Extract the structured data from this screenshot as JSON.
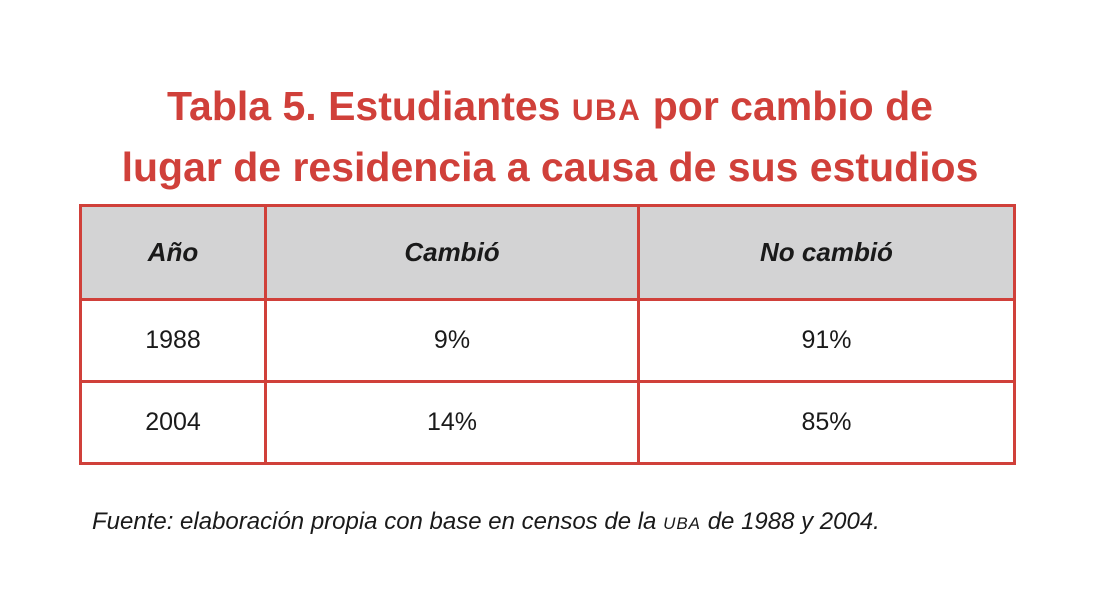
{
  "title": {
    "line1_before": "Tabla 5. Estudiantes ",
    "line1_abbr": "UBA",
    "line1_after": " por cambio de",
    "line2": "lugar de residencia a causa de sus estudios"
  },
  "table": {
    "headers": [
      "Año",
      "Cambió",
      "No cambió"
    ],
    "rows": [
      [
        "1988",
        "9%",
        "91%"
      ],
      [
        "2004",
        "14%",
        "85%"
      ]
    ]
  },
  "source": {
    "before": "Fuente: elaboración propia con base en censos de la ",
    "abbr": "UBA",
    "after": " de 1988 y 2004."
  },
  "colors": {
    "accent": "#d0403a",
    "header_bg": "#d3d3d4"
  }
}
